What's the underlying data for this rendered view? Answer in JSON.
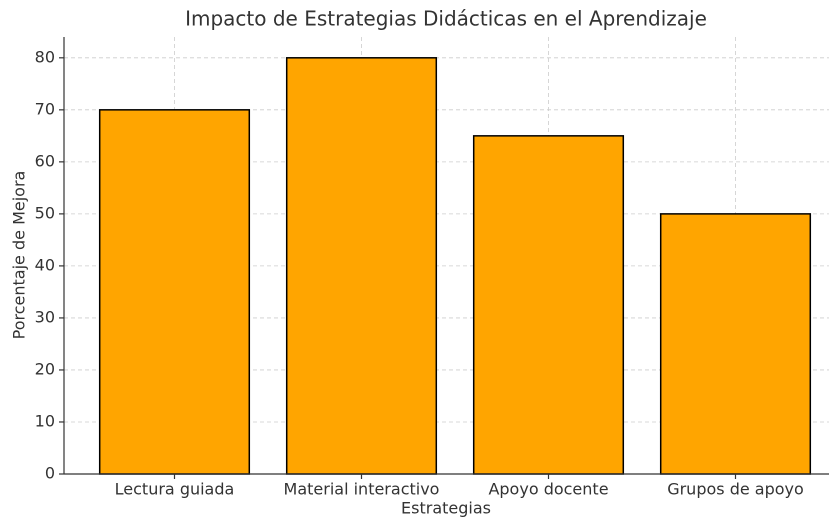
{
  "chart_data": {
    "type": "bar",
    "title": "Impacto de Estrategias Didácticas en el Aprendizaje",
    "x_label": "Estrategias",
    "y_label": "Porcentaje de Mejora",
    "categories": [
      "Lectura guiada",
      "Material interactivo",
      "Apoyo docente",
      "Grupos de apoyo"
    ],
    "values": [
      70,
      80,
      65,
      50
    ],
    "color": "#ffa500",
    "edgecolor": "#000000",
    "ylim": [
      0,
      84
    ],
    "yticks": [
      0,
      10,
      20,
      30,
      40,
      50,
      60,
      70,
      80
    ],
    "grid": true
  }
}
